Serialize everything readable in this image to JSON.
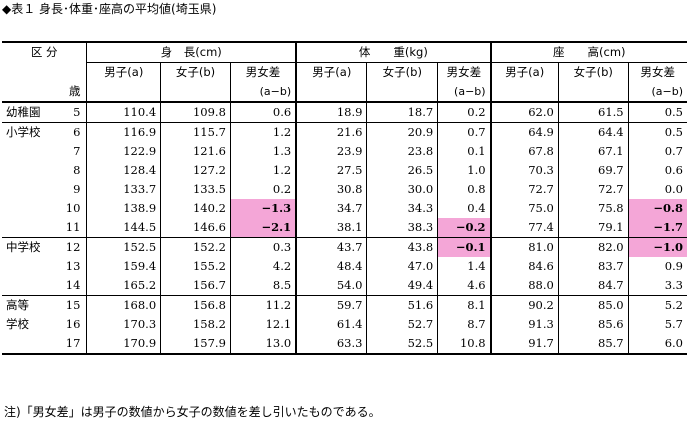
{
  "title": "◆表１ 身長･体重･座高の平均値(埼玉県)",
  "header": {
    "kubun": "区 分",
    "age_label": "歳",
    "groups": [
      "身　長(cm)",
      "体　　重(kg)",
      "座　　高(cm)"
    ],
    "sub": [
      "男子(a)",
      "女子(b)",
      "男女差"
    ],
    "diff_formula": "(a−b)"
  },
  "rows": [
    {
      "school": "幼稚園",
      "age": "5",
      "h": [
        "110.4",
        "109.8",
        "0.6"
      ],
      "w": [
        "18.9",
        "18.7",
        "0.2"
      ],
      "s": [
        "62.0",
        "61.5",
        "0.5"
      ]
    },
    {
      "school": "小学校",
      "age": "6",
      "h": [
        "116.9",
        "115.7",
        "1.2"
      ],
      "w": [
        "21.6",
        "20.9",
        "0.7"
      ],
      "s": [
        "64.9",
        "64.4",
        "0.5"
      ]
    },
    {
      "school": "",
      "age": "7",
      "h": [
        "122.9",
        "121.6",
        "1.3"
      ],
      "w": [
        "23.9",
        "23.8",
        "0.1"
      ],
      "s": [
        "67.8",
        "67.1",
        "0.7"
      ]
    },
    {
      "school": "",
      "age": "8",
      "h": [
        "128.4",
        "127.2",
        "1.2"
      ],
      "w": [
        "27.5",
        "26.5",
        "1.0"
      ],
      "s": [
        "70.3",
        "69.7",
        "0.6"
      ]
    },
    {
      "school": "",
      "age": "9",
      "h": [
        "133.7",
        "133.5",
        "0.2"
      ],
      "w": [
        "30.8",
        "30.0",
        "0.8"
      ],
      "s": [
        "72.7",
        "72.7",
        "0.0"
      ]
    },
    {
      "school": "",
      "age": "10",
      "h": [
        "138.9",
        "140.2",
        "−1.3"
      ],
      "w": [
        "34.7",
        "34.3",
        "0.4"
      ],
      "s": [
        "75.0",
        "75.8",
        "−0.8"
      ]
    },
    {
      "school": "",
      "age": "11",
      "h": [
        "144.5",
        "146.6",
        "−2.1"
      ],
      "w": [
        "38.1",
        "38.3",
        "−0.2"
      ],
      "s": [
        "77.4",
        "79.1",
        "−1.7"
      ]
    },
    {
      "school": "中学校",
      "age": "12",
      "h": [
        "152.5",
        "152.2",
        "0.3"
      ],
      "w": [
        "43.7",
        "43.8",
        "−0.1"
      ],
      "s": [
        "81.0",
        "82.0",
        "−1.0"
      ]
    },
    {
      "school": "",
      "age": "13",
      "h": [
        "159.4",
        "155.2",
        "4.2"
      ],
      "w": [
        "48.4",
        "47.0",
        "1.4"
      ],
      "s": [
        "84.6",
        "83.7",
        "0.9"
      ]
    },
    {
      "school": "",
      "age": "14",
      "h": [
        "165.2",
        "156.7",
        "8.5"
      ],
      "w": [
        "54.0",
        "49.4",
        "4.6"
      ],
      "s": [
        "88.0",
        "84.7",
        "3.3"
      ]
    },
    {
      "school": "高等",
      "age": "15",
      "h": [
        "168.0",
        "156.8",
        "11.2"
      ],
      "w": [
        "59.7",
        "51.6",
        "8.1"
      ],
      "s": [
        "90.2",
        "85.0",
        "5.2"
      ]
    },
    {
      "school": "学校",
      "age": "16",
      "h": [
        "170.3",
        "158.2",
        "12.1"
      ],
      "w": [
        "61.4",
        "52.7",
        "8.7"
      ],
      "s": [
        "91.3",
        "85.6",
        "5.7"
      ]
    },
    {
      "school": "",
      "age": "17",
      "h": [
        "170.9",
        "157.9",
        "13.0"
      ],
      "w": [
        "63.3",
        "52.5",
        "10.8"
      ],
      "s": [
        "91.7",
        "85.7",
        "6.0"
      ]
    }
  ],
  "highlight_color": "#f4a6d7",
  "note": "注)「男女差」は男子の数値から女子の数値を差し引いたものである。"
}
